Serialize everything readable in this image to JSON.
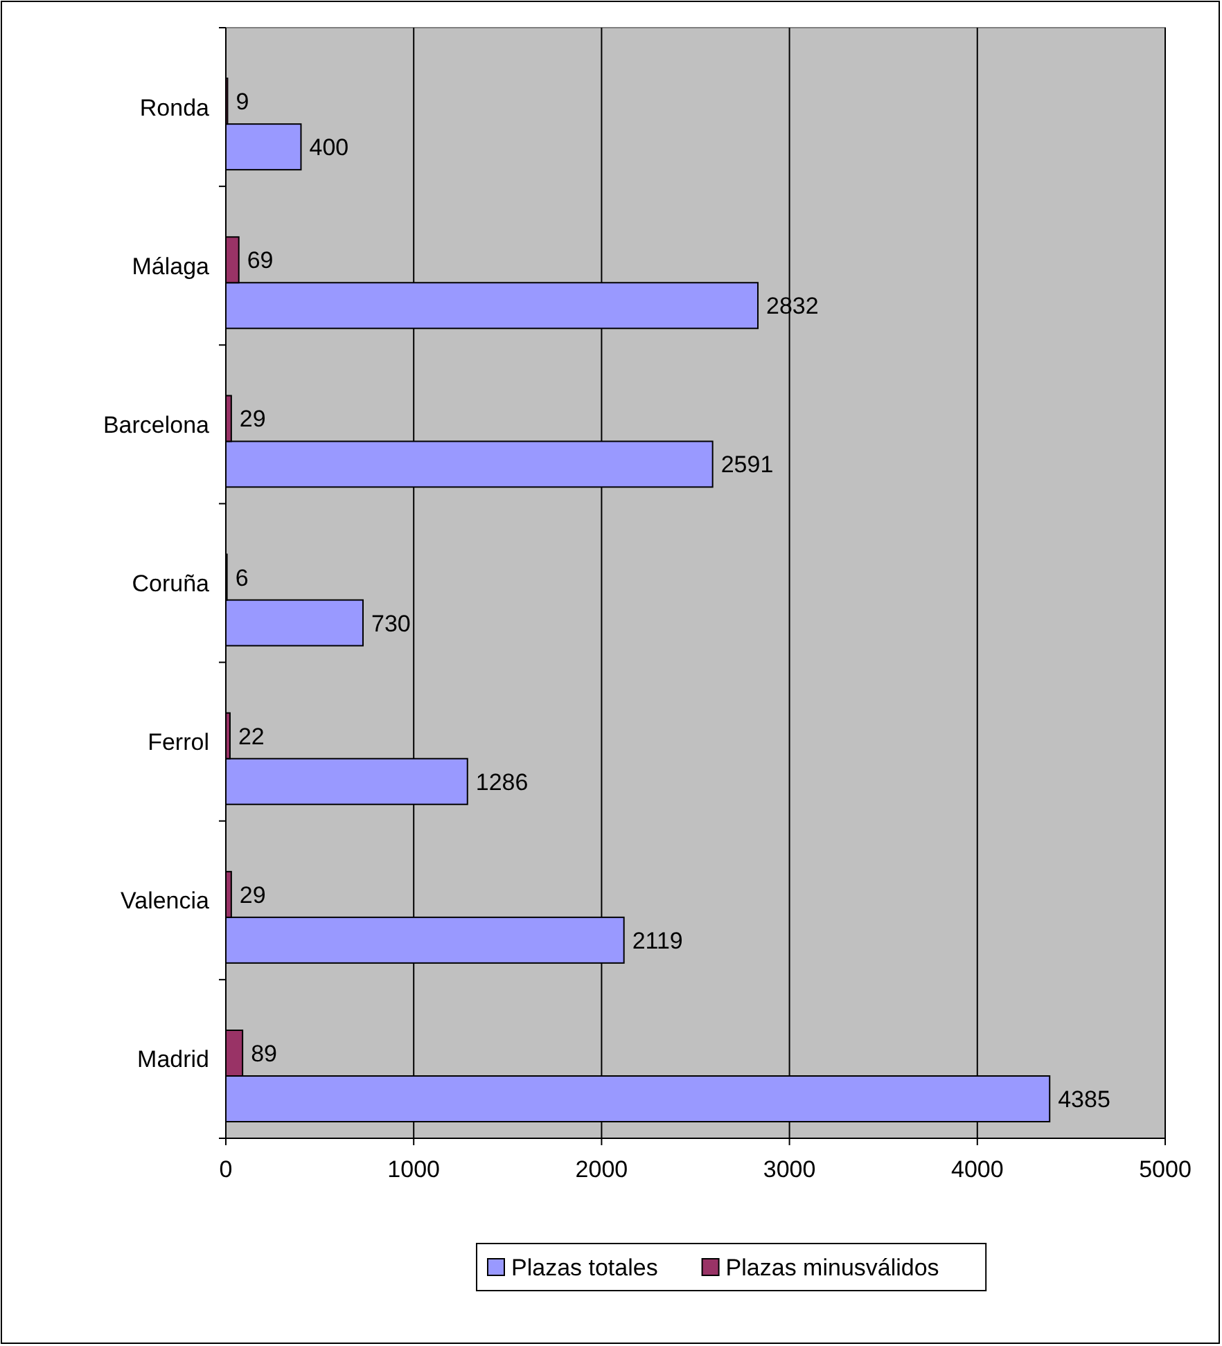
{
  "chart_data": {
    "type": "bar",
    "orientation": "horizontal",
    "categories": [
      "Ronda",
      "Málaga",
      "Barcelona",
      "Coruña",
      "Ferrol",
      "Valencia",
      "Madrid"
    ],
    "series": [
      {
        "name": "Plazas totales",
        "color": "#9999ff",
        "values": [
          400,
          2832,
          2591,
          730,
          1286,
          2119,
          4385
        ]
      },
      {
        "name": "Plazas minusválidos",
        "color": "#993366",
        "values": [
          9,
          69,
          29,
          6,
          22,
          29,
          89
        ]
      }
    ],
    "xlim": [
      0,
      5000
    ],
    "xticks": [
      0,
      1000,
      2000,
      3000,
      4000,
      5000
    ],
    "grid": "x",
    "legend": "bottom",
    "data_labels": true
  }
}
